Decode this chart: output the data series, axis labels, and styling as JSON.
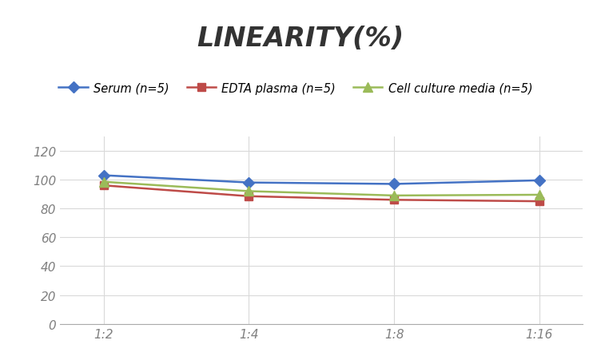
{
  "title": "LINEARITY(%)",
  "title_fontsize": 24,
  "title_fontstyle": "italic",
  "title_fontweight": "bold",
  "title_color": "#333333",
  "x_labels": [
    "1:2",
    "1:4",
    "1:8",
    "1:16"
  ],
  "x_positions": [
    0,
    1,
    2,
    3
  ],
  "series": [
    {
      "label": "Serum (n=5)",
      "values": [
        103,
        98,
        97,
        99.5
      ],
      "color": "#4472C4",
      "marker": "D",
      "markersize": 7,
      "linewidth": 1.8
    },
    {
      "label": "EDTA plasma (n=5)",
      "values": [
        96,
        88.5,
        86,
        85
      ],
      "color": "#BE4B48",
      "marker": "s",
      "markersize": 7,
      "linewidth": 1.8
    },
    {
      "label": "Cell culture media (n=5)",
      "values": [
        98.5,
        92,
        89,
        89.5
      ],
      "color": "#9BBB59",
      "marker": "^",
      "markersize": 8,
      "linewidth": 1.8
    }
  ],
  "ylim": [
    0,
    130
  ],
  "yticks": [
    0,
    20,
    40,
    60,
    80,
    100,
    120
  ],
  "grid_color": "#D9D9D9",
  "background_color": "#FFFFFF",
  "legend_fontsize": 10.5,
  "tick_fontsize": 11,
  "tick_color": "#808080"
}
